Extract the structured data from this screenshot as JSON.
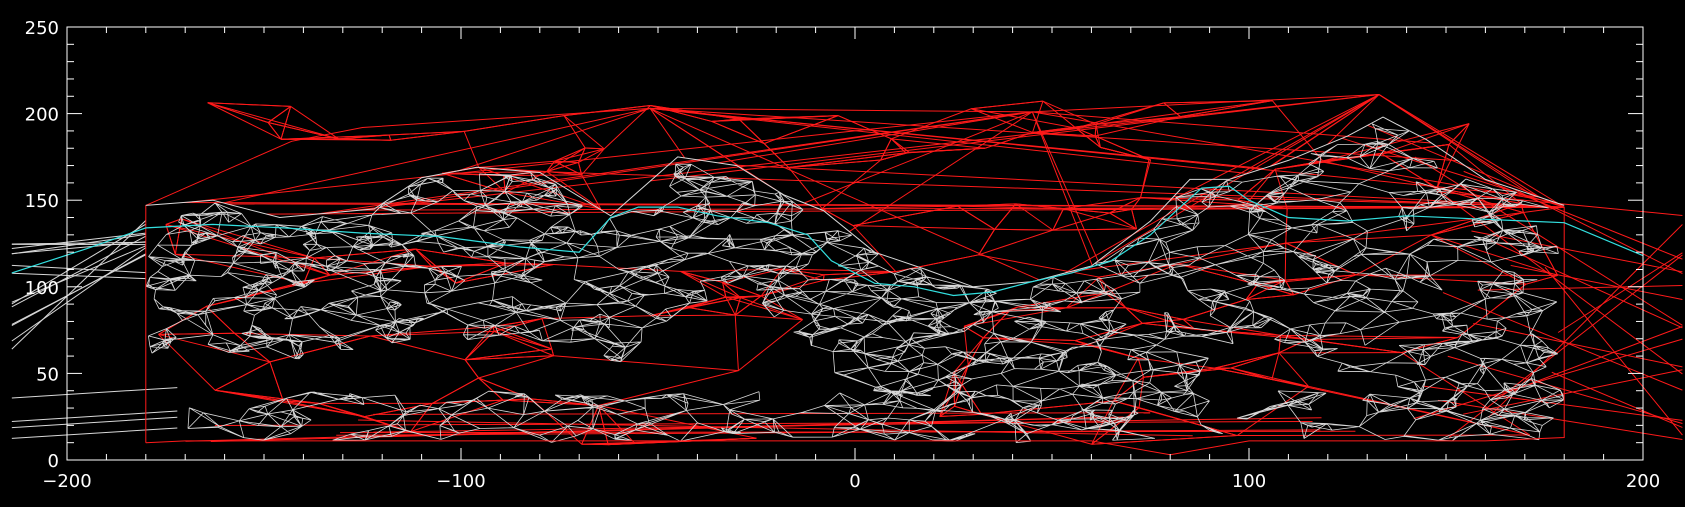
{
  "chart_data": {
    "type": "scatter",
    "title": "",
    "xlabel": "",
    "ylabel": "",
    "xlim": [
      -200,
      200
    ],
    "ylim": [
      0,
      250
    ],
    "x_ticks": [
      -200,
      -100,
      0,
      100,
      200
    ],
    "x_tick_labels": [
      "−200",
      "−100",
      "0",
      "100",
      "200"
    ],
    "y_ticks": [
      0,
      50,
      100,
      150,
      200,
      250
    ],
    "y_tick_labels": [
      "0",
      "50",
      "100",
      "150",
      "200",
      "250"
    ],
    "grid": false,
    "legend": "none",
    "colors": {
      "background": "#000000",
      "axes": "#ffffff",
      "mesh_white": "#d8d8d8",
      "mesh_red": "#ff1a1a",
      "contour": "#33e0e0"
    },
    "series": [
      {
        "kind": "hull_boundary",
        "color": "#ff1a1a",
        "x": [
          -180,
          -180,
          -143,
          -125,
          -52,
          45,
          133,
          180,
          180,
          160,
          100,
          80,
          60,
          -170,
          -180
        ],
        "y": [
          10,
          147,
          184,
          192,
          203,
          201,
          211,
          146,
          13,
          11,
          11,
          3,
          11,
          11,
          10
        ]
      },
      {
        "kind": "upper_mesh_edge",
        "color": "#d8d8d8",
        "x": [
          -180,
          -163,
          -146,
          -122,
          -110,
          -96,
          -80,
          -62,
          -45,
          -30,
          -18,
          -8,
          5,
          18,
          30,
          45,
          60,
          75,
          85,
          95,
          110,
          125,
          134,
          145,
          160,
          180
        ],
        "y": [
          147,
          150,
          140,
          145,
          163,
          169,
          166,
          141,
          175,
          170,
          153,
          144,
          120,
          110,
          100,
          103,
          112,
          138,
          162,
          162,
          173,
          187,
          198,
          185,
          162,
          147
        ]
      },
      {
        "kind": "contour",
        "color": "#33e0e0",
        "x": [
          -214,
          -195,
          -180,
          -163,
          -145,
          -125,
          -105,
          -85,
          -70,
          -62,
          -55,
          -45,
          -35,
          -22,
          -12,
          -6,
          5,
          15,
          25,
          35,
          45,
          55,
          65,
          75,
          82,
          88,
          95,
          100,
          110,
          125,
          140,
          160,
          180,
          200
        ],
        "y": [
          108,
          122,
          134,
          136,
          134,
          131,
          129,
          123,
          120,
          140,
          146,
          146,
          141,
          137,
          130,
          115,
          102,
          100,
          95,
          97,
          103,
          108,
          115,
          130,
          145,
          157,
          158,
          150,
          140,
          138,
          141,
          139,
          137,
          118
        ]
      }
    ]
  }
}
